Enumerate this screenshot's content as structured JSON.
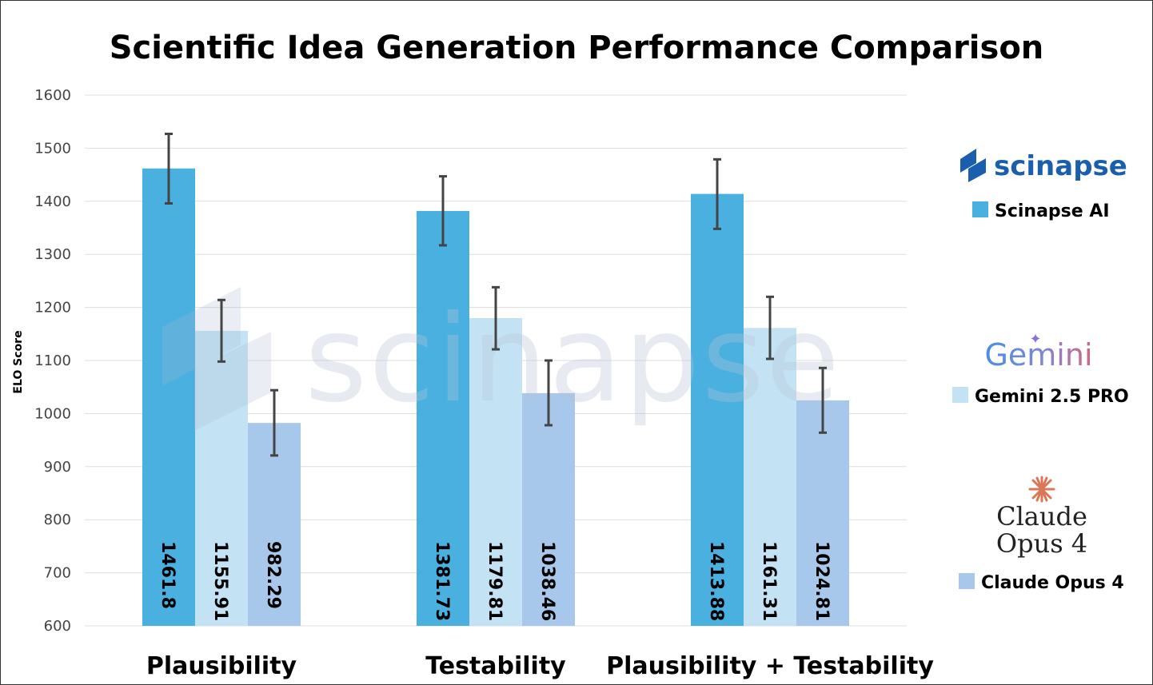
{
  "chart_data": {
    "type": "bar",
    "title": "Scientific Idea Generation Performance Comparison",
    "xlabel": "",
    "ylabel": "ELO Score",
    "ylim": [
      600,
      1600
    ],
    "yticks": [
      600,
      700,
      800,
      900,
      1000,
      1100,
      1200,
      1300,
      1400,
      1500,
      1600
    ],
    "grid": true,
    "legend_position": "right",
    "categories": [
      "Plausibility",
      "Testability",
      "Plausibility + Testability"
    ],
    "series": [
      {
        "name": "Scinapse AI",
        "color": "#49b0e0",
        "values": [
          1461.8,
          1381.73,
          1413.88
        ],
        "value_labels": [
          "1461.8",
          "1381.73",
          "1413.88"
        ],
        "error_low": [
          1396,
          1317,
          1348
        ],
        "error_high": [
          1527,
          1447,
          1479
        ]
      },
      {
        "name": "Gemini 2.5 PRO",
        "color": "#c3e3f5",
        "values": [
          1155.91,
          1179.81,
          1161.31
        ],
        "value_labels": [
          "1155.91",
          "1179.81",
          "1161.31"
        ],
        "error_low": [
          1098,
          1121,
          1103
        ],
        "error_high": [
          1214,
          1238,
          1220
        ]
      },
      {
        "name": "Claude Opus 4",
        "color": "#a7c8ea",
        "values": [
          982.29,
          1038.46,
          1024.81
        ],
        "value_labels": [
          "982.29",
          "1038.46",
          "1024.81"
        ],
        "error_low": [
          921,
          978,
          964
        ],
        "error_high": [
          1044,
          1100,
          1086
        ]
      }
    ]
  },
  "legend_logos": {
    "scinapse": "scinapse",
    "gemini": "Gemini",
    "claude_line1": "Claude",
    "claude_line2": "Opus 4"
  },
  "watermark": "scinapse",
  "colors": {
    "gridline": "#dddddd",
    "error_bar": "#444444",
    "scinapse_logo": "#1a5fae",
    "gemini_logo_start": "#4a8fe0",
    "gemini_logo_end": "#d6657e",
    "claude_spark": "#d97757"
  }
}
